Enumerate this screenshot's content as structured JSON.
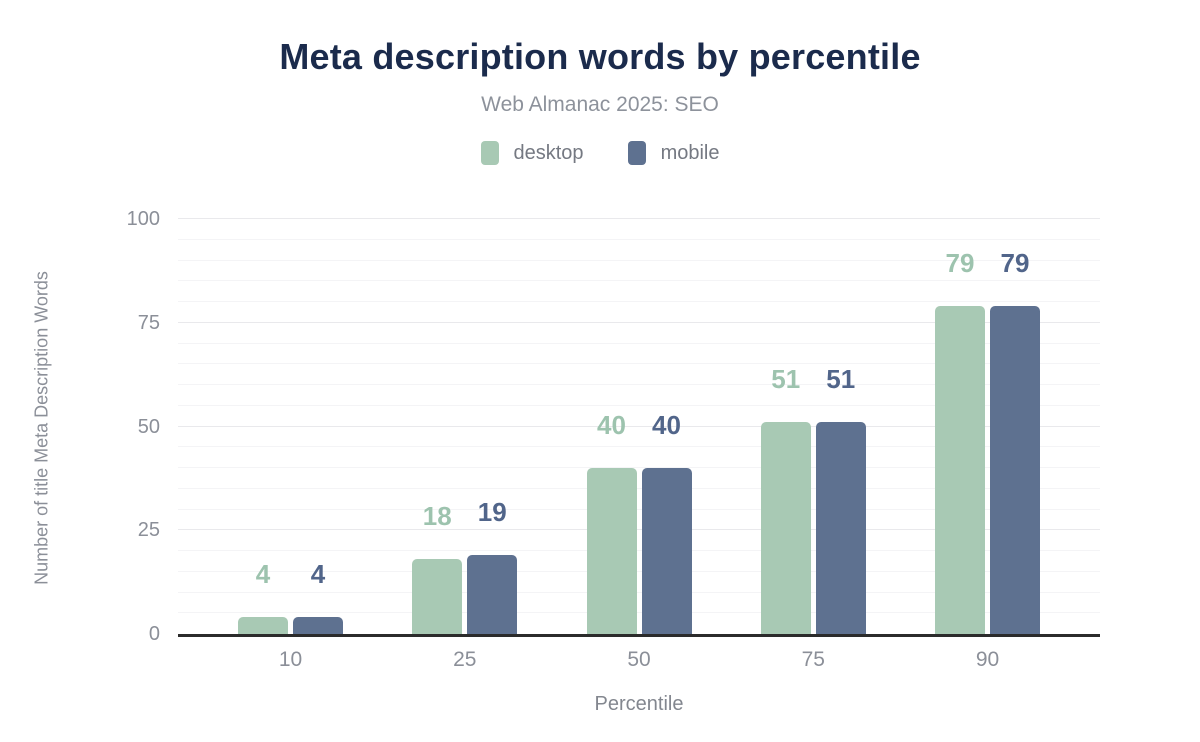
{
  "header": {
    "title": "Meta description words by percentile",
    "subtitle": "Web Almanac 2025: SEO"
  },
  "colors": {
    "title_text": "#1b2b4c",
    "axis_text": "#8b8f98",
    "baseline": "#2b2b2b",
    "gridline_major": "#e9e9ec",
    "gridline_minor": "#f4f4f6"
  },
  "chart_data": {
    "type": "bar",
    "title": "Meta description words by percentile",
    "subtitle": "Web Almanac 2025: SEO",
    "categories": [
      "10",
      "25",
      "50",
      "75",
      "90"
    ],
    "series": [
      {
        "name": "desktop",
        "color": "#a8c9b4",
        "label_color": "#9dc3ae",
        "values": [
          4,
          18,
          40,
          51,
          79
        ]
      },
      {
        "name": "mobile",
        "color": "#5e7190",
        "label_color": "#51658a",
        "values": [
          4,
          19,
          40,
          51,
          79
        ]
      }
    ],
    "xlabel": "Percentile",
    "ylabel": "Number of title Meta Description Words",
    "ylim": [
      0,
      100
    ],
    "yticks": [
      0,
      25,
      50,
      75,
      100
    ],
    "minor_grid_step": 5,
    "grid": "on",
    "legend_position": "top",
    "value_labels": "above-bars"
  }
}
